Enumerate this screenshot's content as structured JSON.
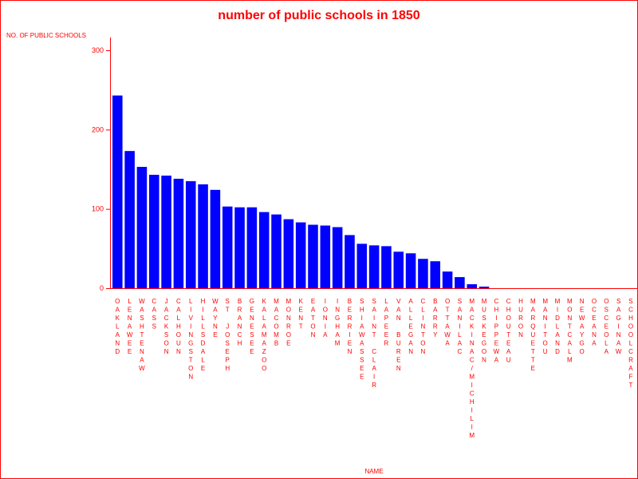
{
  "chart_data": {
    "type": "bar",
    "title": "number of public schools in 1850",
    "xlabel": "NAME",
    "ylabel": "NO. OF PUBLIC SCHOOLS",
    "ylim": [
      0,
      300
    ],
    "yticks": [
      0,
      100,
      200,
      300
    ],
    "grid": false,
    "legend": "none",
    "colors": {
      "bar": "#0000ff",
      "text": "#ff0000",
      "frame": "#ff0000"
    },
    "categories": [
      "OAKLAND",
      "LENAWEE",
      "WASHTENAW",
      "CASS",
      "JACKSON",
      "CALHOUN",
      "LIVINGSTON",
      "HILLSDALE",
      "WAYNE",
      "ST JOSEPH",
      "BRANCH",
      "GENESEE",
      "KALAMAZOO",
      "MACOMB",
      "MONROE",
      "KENT",
      "EATON",
      "IONIA",
      "INGHAM",
      "BERRIEN",
      "SHIAWASSEE",
      "SAINT CLAIR",
      "LAPEER",
      "VAN BUREN",
      "ALLEGAN",
      "CLINTON",
      "BARRY",
      "OTTAWA",
      "SANILAC",
      "MACKINAC/MICHILIM",
      "MUSKEGON",
      "CHIPPEWA",
      "CHOUTEAU",
      "HURON",
      "MARQUETTE",
      "MANITOU",
      "MIDLAND",
      "MONTCALM",
      "NEWAYGO",
      "OCEANA",
      "OSCEOLA",
      "SAGINAW",
      "SCHOOLCRAFT"
    ],
    "values": [
      243,
      173,
      153,
      143,
      142,
      138,
      135,
      131,
      124,
      103,
      102,
      102,
      96,
      93,
      87,
      83,
      80,
      79,
      77,
      67,
      56,
      54,
      53,
      46,
      44,
      37,
      34,
      21,
      14,
      5,
      2,
      0,
      0,
      0,
      0,
      0,
      0,
      0,
      0,
      0,
      0,
      0,
      0
    ]
  }
}
